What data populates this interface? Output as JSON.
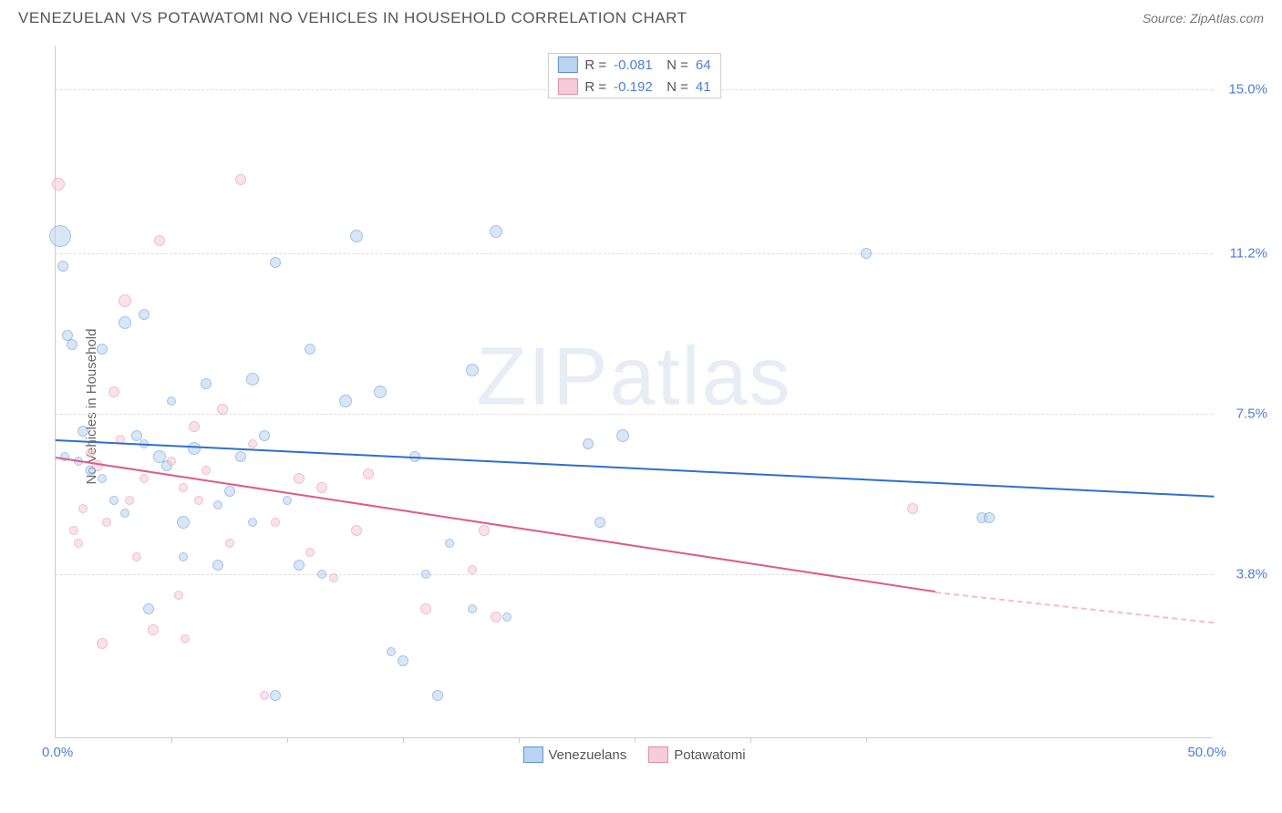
{
  "title": "VENEZUELAN VS POTAWATOMI NO VEHICLES IN HOUSEHOLD CORRELATION CHART",
  "source": "Source: ZipAtlas.com",
  "watermark": "ZIPatlas",
  "yaxis_title": "No Vehicles in Household",
  "chart": {
    "type": "scatter",
    "xlim": [
      0,
      50
    ],
    "ylim": [
      0,
      16
    ],
    "xlabel_min": "0.0%",
    "xlabel_max": "50.0%",
    "xtick_positions": [
      5,
      10,
      15,
      20,
      25,
      30,
      35
    ],
    "yticks": [
      {
        "v": 3.8,
        "label": "3.8%",
        "color": "#4a7fd8"
      },
      {
        "v": 7.5,
        "label": "7.5%",
        "color": "#4a7fd8"
      },
      {
        "v": 11.2,
        "label": "11.2%",
        "color": "#4a7fd8"
      },
      {
        "v": 15.0,
        "label": "15.0%",
        "color": "#4a7fd8"
      }
    ],
    "background_color": "#ffffff",
    "grid_color": "#dddddd"
  },
  "series": [
    {
      "name": "Venezuelans",
      "fill": "#b9d3f0",
      "stroke": "#5a94d6",
      "line_color": "#2e6fd0",
      "R": "-0.081",
      "N": "64",
      "trend": {
        "x1": 0,
        "y1": 6.9,
        "x2": 50,
        "y2": 5.6
      },
      "points": [
        [
          0.2,
          11.6,
          24
        ],
        [
          0.3,
          10.9,
          12
        ],
        [
          0.5,
          9.3,
          12
        ],
        [
          0.7,
          9.1,
          12
        ],
        [
          0.4,
          6.5,
          10
        ],
        [
          1.0,
          6.4,
          10
        ],
        [
          1.2,
          7.1,
          12
        ],
        [
          1.5,
          6.2,
          11
        ],
        [
          2.0,
          9.0,
          12
        ],
        [
          2.0,
          6.0,
          10
        ],
        [
          2.5,
          5.5,
          10
        ],
        [
          3.0,
          9.6,
          14
        ],
        [
          3.5,
          7.0,
          12
        ],
        [
          3.0,
          5.2,
          10
        ],
        [
          3.8,
          9.8,
          12
        ],
        [
          3.8,
          6.8,
          10
        ],
        [
          4.0,
          3.0,
          12
        ],
        [
          4.5,
          6.5,
          14
        ],
        [
          4.8,
          6.3,
          12
        ],
        [
          5.0,
          7.8,
          10
        ],
        [
          5.5,
          5.0,
          14
        ],
        [
          5.5,
          4.2,
          10
        ],
        [
          6.0,
          6.7,
          14
        ],
        [
          6.5,
          8.2,
          12
        ],
        [
          7.0,
          4.0,
          12
        ],
        [
          7.0,
          5.4,
          10
        ],
        [
          7.5,
          5.7,
          12
        ],
        [
          8.0,
          6.5,
          12
        ],
        [
          8.5,
          8.3,
          14
        ],
        [
          8.5,
          5.0,
          10
        ],
        [
          9.0,
          7.0,
          12
        ],
        [
          9.5,
          11.0,
          12
        ],
        [
          9.5,
          1.0,
          12
        ],
        [
          10.0,
          5.5,
          10
        ],
        [
          10.5,
          4.0,
          12
        ],
        [
          11.0,
          9.0,
          12
        ],
        [
          11.5,
          3.8,
          10
        ],
        [
          12.5,
          7.8,
          14
        ],
        [
          13.0,
          11.6,
          14
        ],
        [
          14.0,
          8.0,
          14
        ],
        [
          14.5,
          2.0,
          10
        ],
        [
          15.0,
          1.8,
          12
        ],
        [
          15.5,
          6.5,
          12
        ],
        [
          16.0,
          3.8,
          10
        ],
        [
          16.5,
          1.0,
          12
        ],
        [
          17.0,
          4.5,
          10
        ],
        [
          18.0,
          8.5,
          14
        ],
        [
          18.0,
          3.0,
          10
        ],
        [
          19.0,
          11.7,
          14
        ],
        [
          19.5,
          2.8,
          10
        ],
        [
          23.0,
          6.8,
          12
        ],
        [
          23.5,
          5.0,
          12
        ],
        [
          35.0,
          11.2,
          12
        ],
        [
          40.0,
          5.1,
          12
        ],
        [
          40.3,
          5.1,
          12
        ],
        [
          24.5,
          7.0,
          14
        ]
      ]
    },
    {
      "name": "Potawatomi",
      "fill": "#f5cdd8",
      "stroke": "#e08da5",
      "line_color": "#e15a85",
      "R": "-0.192",
      "N": "41",
      "trend": {
        "x1": 0,
        "y1": 6.5,
        "x2": 38,
        "y2": 3.4
      },
      "trend_dash": {
        "x1": 38,
        "y1": 3.4,
        "x2": 50,
        "y2": 2.7
      },
      "points": [
        [
          0.1,
          12.8,
          14
        ],
        [
          0.8,
          4.8,
          10
        ],
        [
          1.0,
          4.5,
          10
        ],
        [
          1.2,
          5.3,
          10
        ],
        [
          1.5,
          6.6,
          10
        ],
        [
          1.8,
          6.3,
          12
        ],
        [
          2.0,
          2.2,
          12
        ],
        [
          2.2,
          5.0,
          10
        ],
        [
          2.5,
          8.0,
          12
        ],
        [
          2.8,
          6.9,
          10
        ],
        [
          3.0,
          10.1,
          14
        ],
        [
          3.2,
          5.5,
          10
        ],
        [
          3.5,
          4.2,
          10
        ],
        [
          3.8,
          6.0,
          10
        ],
        [
          4.2,
          2.5,
          12
        ],
        [
          4.5,
          11.5,
          12
        ],
        [
          5.0,
          6.4,
          10
        ],
        [
          5.3,
          3.3,
          10
        ],
        [
          5.5,
          5.8,
          10
        ],
        [
          5.6,
          2.3,
          10
        ],
        [
          6.0,
          7.2,
          12
        ],
        [
          6.2,
          5.5,
          10
        ],
        [
          6.5,
          6.2,
          10
        ],
        [
          7.2,
          7.6,
          12
        ],
        [
          7.5,
          4.5,
          10
        ],
        [
          8.0,
          12.9,
          12
        ],
        [
          8.5,
          6.8,
          10
        ],
        [
          9.5,
          5.0,
          10
        ],
        [
          10.5,
          6.0,
          12
        ],
        [
          11.0,
          4.3,
          10
        ],
        [
          11.5,
          5.8,
          12
        ],
        [
          12.0,
          3.7,
          10
        ],
        [
          13.0,
          4.8,
          12
        ],
        [
          13.5,
          6.1,
          12
        ],
        [
          16.0,
          3.0,
          12
        ],
        [
          18.0,
          3.9,
          10
        ],
        [
          18.5,
          4.8,
          12
        ],
        [
          19.0,
          2.8,
          12
        ],
        [
          37.0,
          5.3,
          12
        ],
        [
          9.0,
          1.0,
          10
        ]
      ]
    }
  ]
}
